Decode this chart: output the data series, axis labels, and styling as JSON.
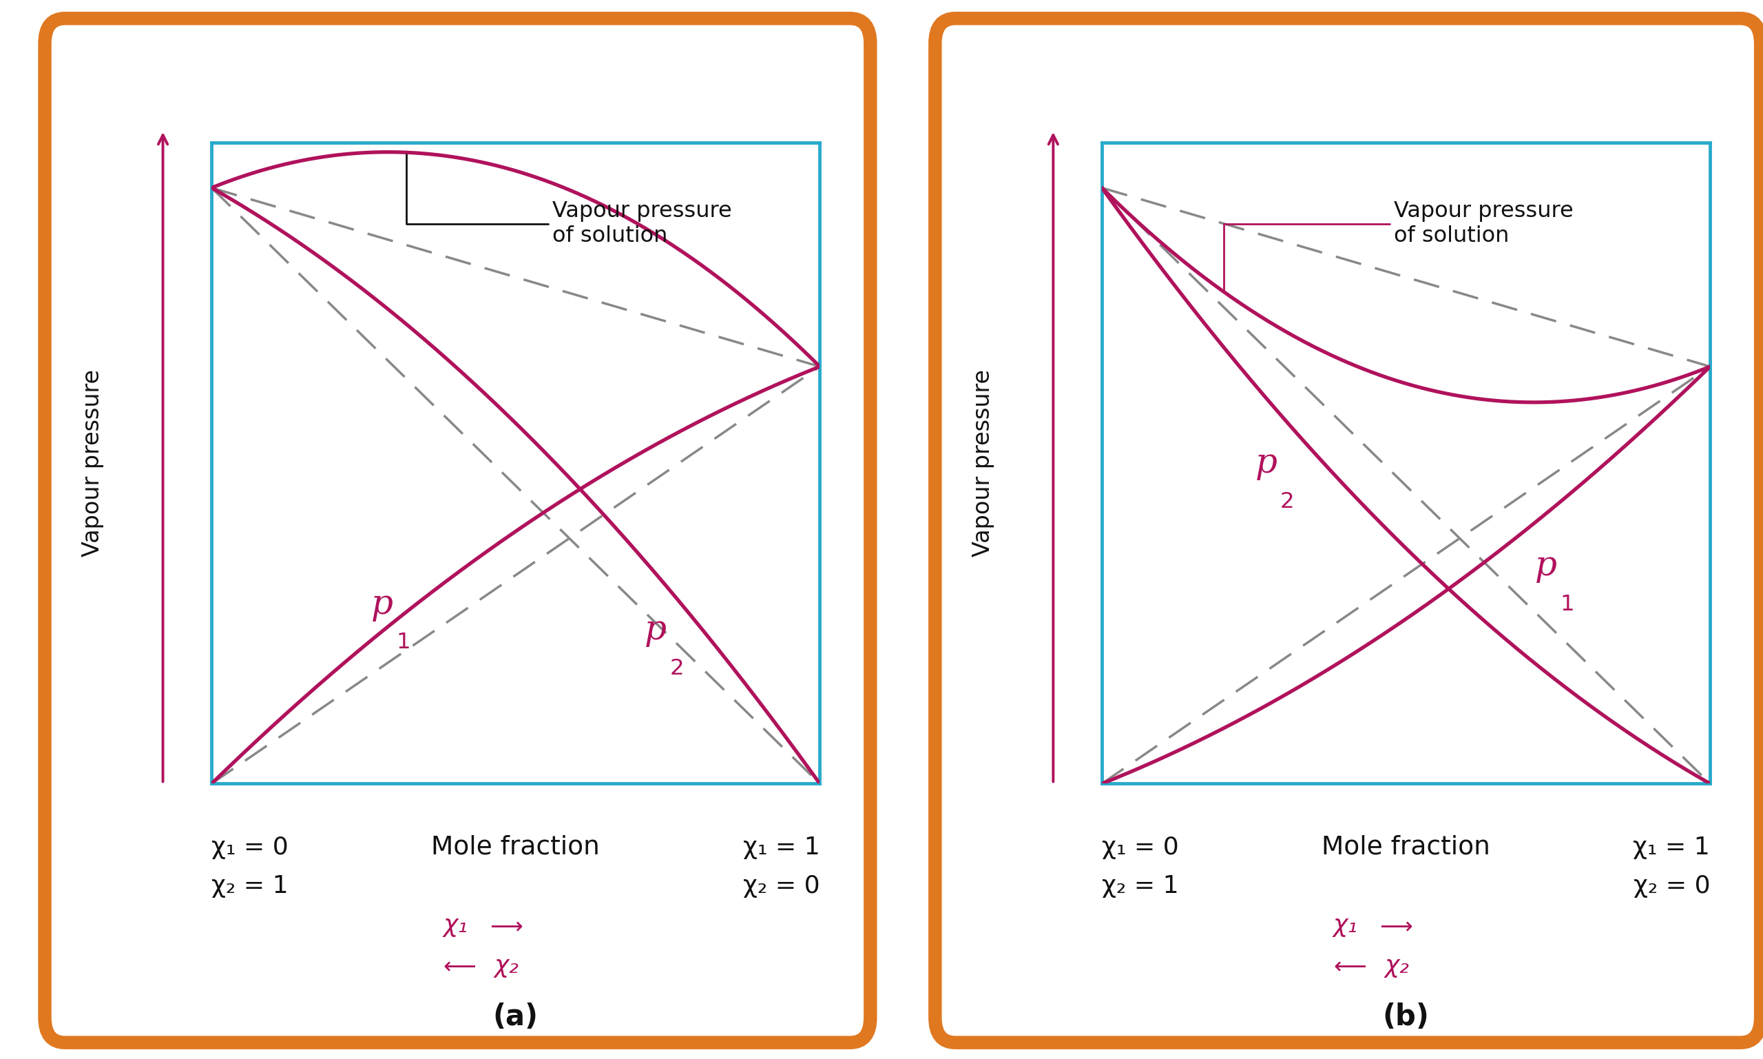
{
  "fig_width": 25.6,
  "fig_height": 15.37,
  "bg": "#FFFFFF",
  "orange": "#E07820",
  "cyan": "#29AACC",
  "magenta": "#B0125C",
  "gray": "#888888",
  "black": "#111111",
  "annotation": "Vapour pressure\nof solution",
  "ylabel": "Vapour pressure",
  "xlabel_mid": "Mole fraction",
  "chi1_0": "χ₁ = 0",
  "chi1_1": "χ₁ = 1",
  "chi2_1": "χ₂ = 1",
  "chi2_0": "χ₂ = 0",
  "chi1": "χ₁",
  "chi2": "χ₂",
  "p1": "p",
  "p1_sub": "1",
  "p2": "p",
  "p2_sub": "2",
  "label_a": "(a)",
  "label_b": "(b)",
  "p1_star": 0.7,
  "p2_star": 1.0,
  "dev_k": 0.42
}
